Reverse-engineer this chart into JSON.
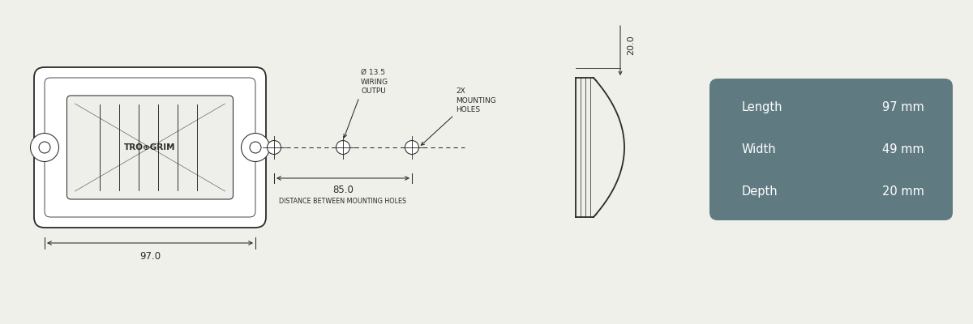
{
  "bg_color": "#f0f0eb",
  "line_color": "#2a2a2a",
  "info_box_color": "#607a82",
  "info_text_color": "#ffffff",
  "specs": [
    {
      "label": "Length",
      "value": "97 mm"
    },
    {
      "label": "Width",
      "value": "49 mm"
    },
    {
      "label": "Depth",
      "value": "20 mm"
    }
  ],
  "length_dim": "97.0",
  "depth_dim": "20.0",
  "hole_dist_dim": "85.0",
  "hole_dist_label": "DISTANCE BETWEEN MOUNTING HOLES",
  "wiring_label": "Ø 13.5\nWIRING\nOUTPU",
  "mounting_label": "2X\nMOUNTING\nHOLES"
}
